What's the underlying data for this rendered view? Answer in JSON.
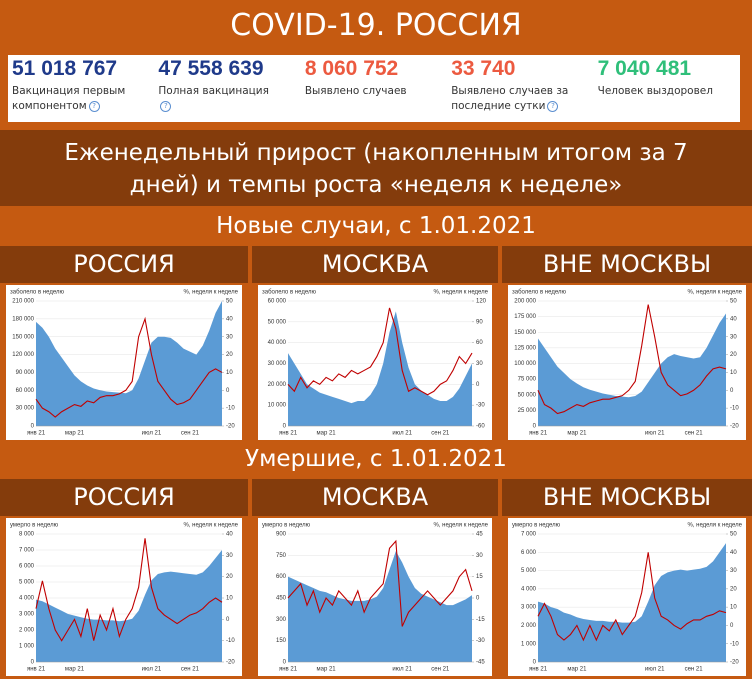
{
  "title": "COVID-19. РОССИЯ",
  "stats": [
    {
      "value": "51 018 767",
      "label": "Вакцинация первым компонентом",
      "color": "#1f3a8a"
    },
    {
      "value": "47 558 639",
      "label": "Полная вакцинация",
      "color": "#1f3a8a"
    },
    {
      "value": "8 060 752",
      "label": "Выявлено случаев",
      "color": "#ec5a40"
    },
    {
      "value": "33 740",
      "label": "Выявлено случаев за последние сутки",
      "color": "#ec5a40"
    },
    {
      "value": "7 040 481",
      "label": "Человек выздоровел",
      "color": "#2fbf7a"
    }
  ],
  "subtitle": "Еженедельный прирост (накопленным итогом за 7 дней) и темпы роста «неделя к неделе»",
  "sections": [
    "Новые случаи, с 1.01.2021",
    "Умершие, с 1.01.2021"
  ],
  "chart_data": [
    {
      "type": "combo",
      "title": "РОССИЯ",
      "ylabel": "заболело в неделю",
      "y2label": "%, неделя к неделе",
      "categories": [
        "янв 21",
        null,
        null,
        null,
        null,
        null,
        "мар 21",
        null,
        null,
        null,
        null,
        null,
        null,
        null,
        null,
        null,
        null,
        null,
        "июл 21",
        null,
        null,
        null,
        null,
        null,
        "сен 21",
        null,
        null,
        null,
        null,
        null
      ],
      "series": [
        {
          "type": "area",
          "color": "#5b9bd5",
          "values": [
            175000,
            165000,
            150000,
            130000,
            115000,
            100000,
            85000,
            75000,
            68000,
            63000,
            60000,
            58000,
            57000,
            56000,
            55000,
            60000,
            80000,
            110000,
            140000,
            150000,
            150000,
            148000,
            140000,
            130000,
            125000,
            120000,
            135000,
            160000,
            190000,
            210000
          ]
        },
        {
          "type": "line",
          "axis": "y2",
          "color": "#c00000",
          "values": [
            -5,
            -10,
            -12,
            -15,
            -12,
            -10,
            -8,
            -9,
            -6,
            -7,
            -4,
            -3,
            -3,
            -2,
            0,
            5,
            30,
            40,
            20,
            5,
            0,
            -5,
            -8,
            -7,
            -5,
            0,
            5,
            10,
            12,
            10
          ]
        }
      ],
      "ylim": [
        0,
        210000
      ],
      "yticks": [
        0,
        {
          "value": 30000,
          "label": "30 000"
        },
        {
          "value": 60000,
          "label": "60 000"
        },
        {
          "value": 90000,
          "label": "90 000"
        },
        {
          "value": 120000,
          "label": "120 000"
        },
        {
          "value": 150000,
          "label": "150 000"
        },
        {
          "value": 180000,
          "label": "180 000"
        },
        {
          "value": 210000,
          "label": "210 000"
        }
      ],
      "y2lim": [
        -20,
        50
      ],
      "y2ticks": [
        -20,
        -10,
        0,
        10,
        20,
        30,
        40,
        50
      ]
    },
    {
      "type": "combo",
      "title": "МОСКВА",
      "ylabel": "заболело в неделю",
      "y2label": "%, неделя к неделе",
      "categories": [
        "янв 21",
        null,
        null,
        null,
        null,
        null,
        "мар 21",
        null,
        null,
        null,
        null,
        null,
        null,
        null,
        null,
        null,
        null,
        null,
        "июл 21",
        null,
        null,
        null,
        null,
        null,
        "сен 21",
        null,
        null,
        null,
        null,
        null
      ],
      "series": [
        {
          "type": "area",
          "color": "#5b9bd5",
          "values": [
            35000,
            30000,
            25000,
            20000,
            18000,
            16000,
            15000,
            14000,
            13000,
            12000,
            11000,
            12000,
            12000,
            15000,
            20000,
            30000,
            45000,
            55000,
            40000,
            28000,
            20000,
            17000,
            15000,
            13000,
            12000,
            12000,
            14000,
            18000,
            24000,
            30000
          ]
        },
        {
          "type": "line",
          "axis": "y2",
          "color": "#c00000",
          "values": [
            0,
            -10,
            10,
            -5,
            5,
            0,
            10,
            5,
            15,
            10,
            20,
            15,
            20,
            25,
            40,
            60,
            110,
            80,
            20,
            -10,
            -5,
            -10,
            -15,
            -10,
            0,
            5,
            20,
            40,
            30,
            45
          ]
        }
      ],
      "ylim": [
        0,
        60000
      ],
      "yticks": [
        0,
        {
          "value": 10000,
          "label": "10 000"
        },
        {
          "value": 20000,
          "label": "20 000"
        },
        {
          "value": 30000,
          "label": "30 000"
        },
        {
          "value": 40000,
          "label": "40 000"
        },
        {
          "value": 50000,
          "label": "50 000"
        },
        {
          "value": 60000,
          "label": "60 000"
        }
      ],
      "y2lim": [
        -60,
        120
      ],
      "y2ticks": [
        -60,
        -30,
        0,
        30,
        60,
        90,
        120
      ]
    },
    {
      "type": "combo",
      "title": "ВНЕ МОСКВЫ",
      "ylabel": "заболело в неделю",
      "y2label": "%, неделя к неделе",
      "categories": [
        "янв 21",
        null,
        null,
        null,
        null,
        null,
        "мар 21",
        null,
        null,
        null,
        null,
        null,
        null,
        null,
        null,
        null,
        null,
        null,
        "июл 21",
        null,
        null,
        null,
        null,
        null,
        "сен 21",
        null,
        null,
        null,
        null,
        null
      ],
      "series": [
        {
          "type": "area",
          "color": "#5b9bd5",
          "values": [
            140000,
            125000,
            110000,
            95000,
            85000,
            75000,
            68000,
            62000,
            58000,
            55000,
            52000,
            50000,
            48000,
            47000,
            46000,
            48000,
            55000,
            70000,
            85000,
            100000,
            110000,
            115000,
            112000,
            110000,
            108000,
            110000,
            125000,
            145000,
            165000,
            180000
          ]
        },
        {
          "type": "line",
          "axis": "y2",
          "color": "#c00000",
          "values": [
            0,
            -8,
            -10,
            -13,
            -12,
            -10,
            -8,
            -9,
            -7,
            -6,
            -5,
            -5,
            -4,
            -3,
            0,
            5,
            25,
            48,
            30,
            10,
            3,
            0,
            -3,
            -2,
            0,
            3,
            8,
            12,
            13,
            12
          ]
        }
      ],
      "ylim": [
        0,
        200000
      ],
      "yticks": [
        0,
        {
          "value": 25000,
          "label": "25 000"
        },
        {
          "value": 50000,
          "label": "50 000"
        },
        {
          "value": 75000,
          "label": "75 000"
        },
        {
          "value": 100000,
          "label": "100 000"
        },
        {
          "value": 125000,
          "label": "125 000"
        },
        {
          "value": 150000,
          "label": "150 000"
        },
        {
          "value": 175000,
          "label": "175 000"
        },
        {
          "value": 200000,
          "label": "200 000"
        }
      ],
      "y2lim": [
        -20,
        50
      ],
      "y2ticks": [
        -20,
        -10,
        0,
        10,
        20,
        30,
        40,
        50
      ]
    },
    {
      "type": "combo",
      "title": "РОССИЯ",
      "ylabel": "умерло в неделю",
      "y2label": "%, неделя к неделе",
      "categories": [
        "янв 21",
        null,
        null,
        null,
        null,
        null,
        "мар 21",
        null,
        null,
        null,
        null,
        null,
        null,
        null,
        null,
        null,
        null,
        null,
        "июл 21",
        null,
        null,
        null,
        null,
        null,
        "сен 21",
        null,
        null,
        null,
        null,
        null
      ],
      "series": [
        {
          "type": "area",
          "color": "#5b9bd5",
          "values": [
            3900,
            3800,
            3600,
            3400,
            3200,
            3000,
            2900,
            2800,
            2700,
            2650,
            2650,
            2600,
            2600,
            2550,
            2600,
            2700,
            3200,
            4200,
            5100,
            5500,
            5600,
            5650,
            5600,
            5550,
            5500,
            5450,
            5600,
            6000,
            6500,
            7000
          ]
        },
        {
          "type": "line",
          "axis": "y2",
          "color": "#c00000",
          "values": [
            5,
            18,
            5,
            -5,
            -10,
            -5,
            0,
            -8,
            5,
            -10,
            2,
            -5,
            5,
            -8,
            0,
            5,
            15,
            38,
            15,
            5,
            2,
            0,
            -2,
            0,
            2,
            3,
            5,
            8,
            10,
            8
          ]
        }
      ],
      "ylim": [
        0,
        8000
      ],
      "yticks": [
        0,
        {
          "value": 1000,
          "label": "1 000"
        },
        {
          "value": 2000,
          "label": "2 000"
        },
        {
          "value": 3000,
          "label": "3 000"
        },
        {
          "value": 4000,
          "label": "4 000"
        },
        {
          "value": 5000,
          "label": "5 000"
        },
        {
          "value": 6000,
          "label": "6 000"
        },
        {
          "value": 7000,
          "label": "7 000"
        },
        {
          "value": 8000,
          "label": "8 000"
        }
      ],
      "y2lim": [
        -20,
        40
      ],
      "y2ticks": [
        -20,
        -10,
        0,
        10,
        20,
        30,
        40
      ]
    },
    {
      "type": "combo",
      "title": "МОСКВА",
      "ylabel": "умерло в неделю",
      "y2label": "%, неделя к неделе",
      "categories": [
        "янв 21",
        null,
        null,
        null,
        null,
        null,
        "мар 21",
        null,
        null,
        null,
        null,
        null,
        null,
        null,
        null,
        null,
        null,
        null,
        "июл 21",
        null,
        null,
        null,
        null,
        null,
        "сен 21",
        null,
        null,
        null,
        null,
        null
      ],
      "series": [
        {
          "type": "area",
          "color": "#5b9bd5",
          "values": [
            600,
            580,
            560,
            540,
            520,
            500,
            490,
            470,
            450,
            440,
            430,
            430,
            430,
            440,
            460,
            520,
            650,
            780,
            700,
            600,
            520,
            480,
            460,
            440,
            420,
            400,
            400,
            420,
            440,
            470
          ]
        },
        {
          "type": "line",
          "axis": "y2",
          "color": "#c00000",
          "values": [
            0,
            5,
            10,
            -5,
            5,
            -10,
            0,
            -5,
            5,
            0,
            -5,
            5,
            -10,
            0,
            5,
            10,
            35,
            40,
            -20,
            -10,
            -5,
            0,
            5,
            0,
            -5,
            0,
            5,
            15,
            20,
            5
          ]
        }
      ],
      "ylim": [
        0,
        900
      ],
      "yticks": [
        0,
        150,
        300,
        450,
        600,
        750,
        900
      ],
      "y2lim": [
        -45,
        45
      ],
      "y2ticks": [
        -45,
        -30,
        -15,
        0,
        15,
        30,
        45
      ]
    },
    {
      "type": "combo",
      "title": "ВНЕ МОСКВЫ",
      "ylabel": "умерло в неделю",
      "y2label": "%, неделя к неделе",
      "categories": [
        "янв 21",
        null,
        null,
        null,
        null,
        null,
        "мар 21",
        null,
        null,
        null,
        null,
        null,
        null,
        null,
        null,
        null,
        null,
        null,
        "июл 21",
        null,
        null,
        null,
        null,
        null,
        "сен 21",
        null,
        null,
        null,
        null,
        null
      ],
      "series": [
        {
          "type": "area",
          "color": "#5b9bd5",
          "values": [
            3300,
            3200,
            3000,
            2900,
            2700,
            2600,
            2450,
            2350,
            2300,
            2250,
            2250,
            2200,
            2200,
            2150,
            2150,
            2200,
            2500,
            3300,
            4200,
            4700,
            4900,
            5000,
            5050,
            5000,
            5050,
            5100,
            5200,
            5500,
            6000,
            6500
          ]
        },
        {
          "type": "line",
          "axis": "y2",
          "color": "#c00000",
          "values": [
            5,
            12,
            5,
            -5,
            -8,
            -5,
            0,
            -8,
            0,
            -8,
            0,
            -3,
            3,
            -5,
            0,
            5,
            18,
            40,
            15,
            5,
            3,
            0,
            -2,
            1,
            3,
            3,
            5,
            6,
            8,
            7
          ]
        }
      ],
      "ylim": [
        0,
        7000
      ],
      "yticks": [
        0,
        {
          "value": 1000,
          "label": "1 000"
        },
        {
          "value": 2000,
          "label": "2 000"
        },
        {
          "value": 3000,
          "label": "3 000"
        },
        {
          "value": 4000,
          "label": "4 000"
        },
        {
          "value": 5000,
          "label": "5 000"
        },
        {
          "value": 6000,
          "label": "6 000"
        },
        {
          "value": 7000,
          "label": "7 000"
        }
      ],
      "y2lim": [
        -20,
        50
      ],
      "y2ticks": [
        -20,
        -10,
        0,
        10,
        20,
        30,
        40,
        50
      ]
    }
  ]
}
